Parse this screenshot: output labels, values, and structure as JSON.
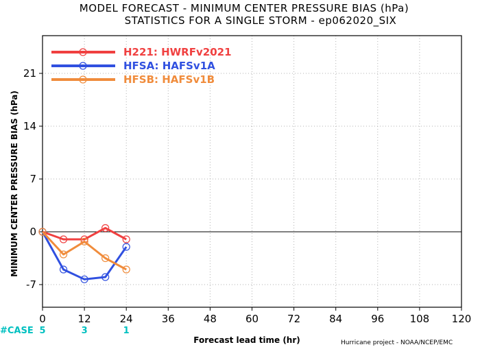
{
  "header": {
    "title_line1": "MODEL FORECAST - MINIMUM CENTER PRESSURE BIAS (hPa)",
    "title_line2": "STATISTICS FOR A SINGLE STORM - ep062020_SIX"
  },
  "footer": {
    "credit": "Hurricane project - NOAA/NCEP/EMC"
  },
  "case_row": {
    "label": "#CASE",
    "color": "#00c0c0",
    "entries": [
      {
        "x": 0,
        "count": "5"
      },
      {
        "x": 12,
        "count": "3"
      },
      {
        "x": 24,
        "count": "1"
      }
    ]
  },
  "chart_data": {
    "type": "line",
    "xlabel": "Forecast lead time (hr)",
    "ylabel": "MINIMUM CENTER PRESSURE BIAS (hPa)",
    "xlim": [
      0,
      120
    ],
    "ylim": [
      -10,
      26
    ],
    "x_ticks": [
      "0",
      "12",
      "24",
      "36",
      "48",
      "60",
      "72",
      "84",
      "96",
      "108",
      "120"
    ],
    "y_ticks": [
      "-7",
      "0",
      "7",
      "14",
      "21"
    ],
    "y_tick_values": [
      -7,
      0,
      7,
      14,
      21
    ],
    "x_tick_values": [
      0,
      12,
      24,
      36,
      48,
      60,
      72,
      84,
      96,
      108,
      120
    ],
    "grid": true,
    "legend_position": "top-left",
    "series": [
      {
        "name": "H221: HWRFv2021",
        "color": "#f04040",
        "x": [
          0,
          6,
          12,
          18,
          24
        ],
        "y": [
          0,
          -1,
          -1,
          0.5,
          -1
        ]
      },
      {
        "name": "HFSA: HAFSv1A",
        "color": "#3050e0",
        "x": [
          0,
          6,
          12,
          18,
          24
        ],
        "y": [
          0,
          -5,
          -6.3,
          -6,
          -2
        ]
      },
      {
        "name": "HFSB: HAFSv1B",
        "color": "#f08c3c",
        "x": [
          0,
          6,
          12,
          18,
          24
        ],
        "y": [
          0,
          -3,
          -1.3,
          -3.5,
          -5
        ]
      }
    ]
  }
}
